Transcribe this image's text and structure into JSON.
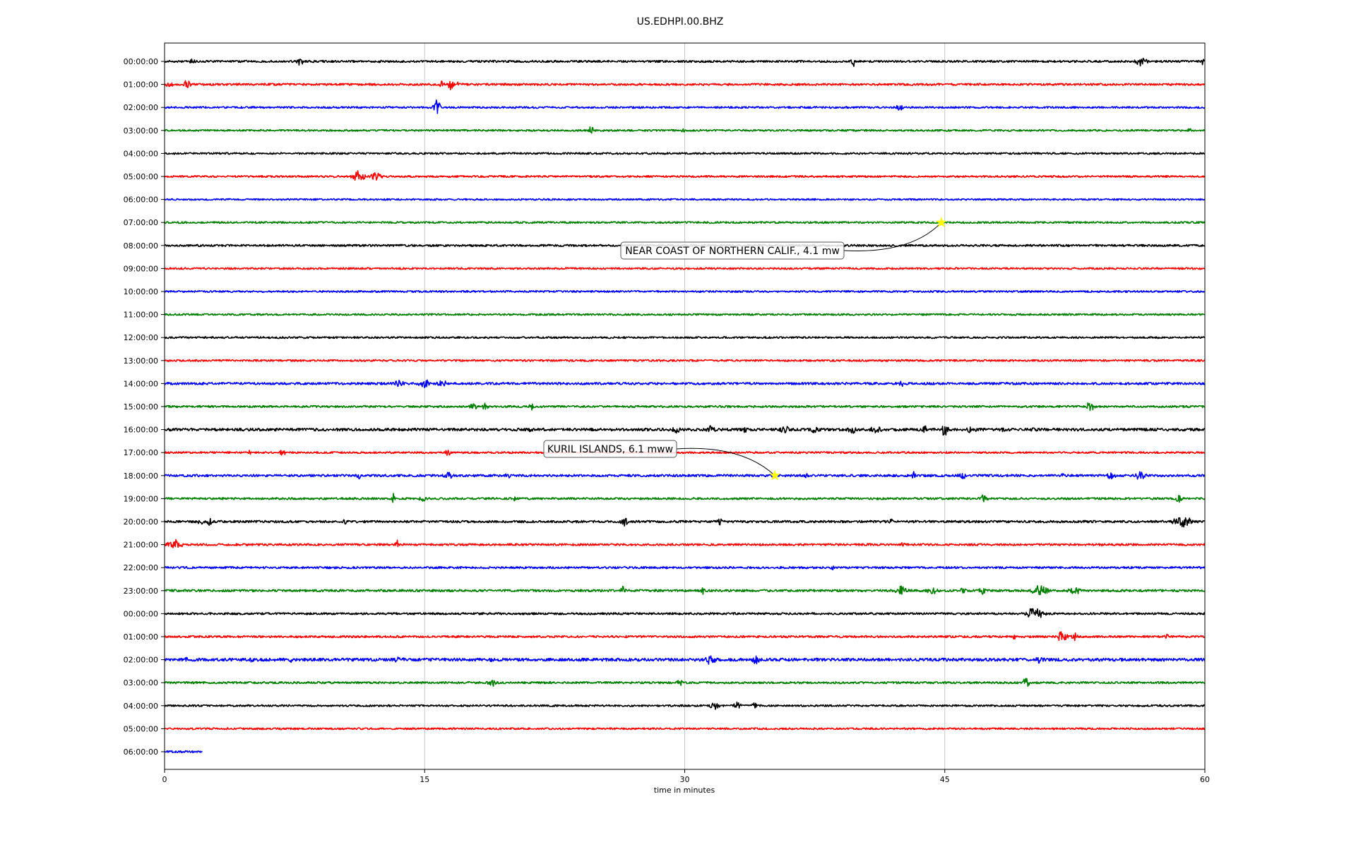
{
  "chart_data": {
    "type": "line",
    "title": "US.EDHPI.00.BHZ",
    "xlabel": "time in minutes",
    "ylabel": "",
    "xlim": [
      0,
      60
    ],
    "x_ticks": [
      0,
      15,
      30,
      45,
      60
    ],
    "x_tick_labels": [
      "0",
      "15",
      "30",
      "45",
      "60"
    ],
    "grid": "vertical",
    "line_colors": [
      "#000000",
      "#ff0000",
      "#0000ff",
      "#008000"
    ],
    "rows": [
      {
        "label": "00:00:00",
        "color": "#000000",
        "end_minute": 60,
        "noise": 0.9,
        "bursts": [
          [
            1.6,
            0.3,
            3
          ],
          [
            7.8,
            0.25,
            7
          ],
          [
            12.4,
            0.4,
            2
          ],
          [
            39.7,
            0.15,
            8
          ],
          [
            56.3,
            0.6,
            5
          ],
          [
            59.9,
            0.1,
            7
          ]
        ]
      },
      {
        "label": "01:00:00",
        "color": "#ff0000",
        "end_minute": 60,
        "noise": 0.9,
        "bursts": [
          [
            0.3,
            0.5,
            3
          ],
          [
            1.3,
            0.3,
            5
          ],
          [
            16.0,
            0.4,
            4
          ],
          [
            16.5,
            0.3,
            8
          ],
          [
            17.0,
            0.3,
            4
          ]
        ]
      },
      {
        "label": "02:00:00",
        "color": "#0000ff",
        "end_minute": 60,
        "noise": 0.8,
        "bursts": [
          [
            15.7,
            0.3,
            9
          ],
          [
            42.4,
            0.3,
            4
          ]
        ]
      },
      {
        "label": "03:00:00",
        "color": "#008000",
        "end_minute": 60,
        "noise": 0.8,
        "bursts": [
          [
            24.6,
            0.2,
            6
          ],
          [
            29.9,
            0.2,
            3
          ],
          [
            59.1,
            0.2,
            3
          ]
        ]
      },
      {
        "label": "04:00:00",
        "color": "#000000",
        "end_minute": 60,
        "noise": 0.8,
        "bursts": []
      },
      {
        "label": "05:00:00",
        "color": "#ff0000",
        "end_minute": 60,
        "noise": 0.8,
        "bursts": [
          [
            9.7,
            0.2,
            2
          ],
          [
            11.2,
            0.6,
            7
          ],
          [
            12.2,
            0.5,
            5
          ]
        ]
      },
      {
        "label": "06:00:00",
        "color": "#0000ff",
        "end_minute": 60,
        "noise": 0.7,
        "bursts": []
      },
      {
        "label": "07:00:00",
        "color": "#008000",
        "end_minute": 60,
        "noise": 0.8,
        "bursts": []
      },
      {
        "label": "08:00:00",
        "color": "#000000",
        "end_minute": 60,
        "noise": 0.9,
        "bursts": []
      },
      {
        "label": "09:00:00",
        "color": "#ff0000",
        "end_minute": 60,
        "noise": 0.8,
        "bursts": []
      },
      {
        "label": "10:00:00",
        "color": "#0000ff",
        "end_minute": 60,
        "noise": 0.8,
        "bursts": []
      },
      {
        "label": "11:00:00",
        "color": "#008000",
        "end_minute": 60,
        "noise": 0.8,
        "bursts": []
      },
      {
        "label": "12:00:00",
        "color": "#000000",
        "end_minute": 60,
        "noise": 0.8,
        "bursts": []
      },
      {
        "label": "13:00:00",
        "color": "#ff0000",
        "end_minute": 60,
        "noise": 0.8,
        "bursts": []
      },
      {
        "label": "14:00:00",
        "color": "#0000ff",
        "end_minute": 60,
        "noise": 1.0,
        "bursts": [
          [
            13.5,
            0.5,
            4
          ],
          [
            15.0,
            0.6,
            5
          ],
          [
            16.0,
            0.5,
            4
          ],
          [
            42.5,
            0.2,
            4
          ]
        ]
      },
      {
        "label": "15:00:00",
        "color": "#008000",
        "end_minute": 60,
        "noise": 0.9,
        "bursts": [
          [
            17.8,
            0.4,
            4
          ],
          [
            18.5,
            0.3,
            4
          ],
          [
            21.2,
            0.3,
            4
          ],
          [
            40.3,
            0.3,
            2
          ],
          [
            53.4,
            0.4,
            6
          ]
        ]
      },
      {
        "label": "16:00:00",
        "color": "#000000",
        "end_minute": 60,
        "noise": 1.2,
        "bursts": [
          [
            21.1,
            0.3,
            3
          ],
          [
            29.5,
            0.5,
            4
          ],
          [
            31.5,
            0.5,
            4
          ],
          [
            33.5,
            0.5,
            4
          ],
          [
            35.8,
            0.6,
            4
          ],
          [
            37.5,
            0.6,
            4
          ],
          [
            39.7,
            0.5,
            5
          ],
          [
            41.0,
            0.6,
            4
          ],
          [
            43.8,
            0.5,
            5
          ],
          [
            45.0,
            0.3,
            8
          ],
          [
            46.5,
            0.5,
            4
          ],
          [
            48.5,
            0.5,
            3
          ],
          [
            50.2,
            0.5,
            3
          ]
        ]
      },
      {
        "label": "17:00:00",
        "color": "#ff0000",
        "end_minute": 60,
        "noise": 0.8,
        "bursts": [
          [
            4.9,
            0.15,
            5
          ],
          [
            6.8,
            0.3,
            4
          ],
          [
            16.3,
            0.3,
            4
          ]
        ]
      },
      {
        "label": "18:00:00",
        "color": "#0000ff",
        "end_minute": 60,
        "noise": 1.0,
        "bursts": [
          [
            11.2,
            0.3,
            5
          ],
          [
            16.4,
            0.5,
            4
          ],
          [
            19.8,
            0.3,
            4
          ],
          [
            35.0,
            0.2,
            3
          ],
          [
            37.0,
            0.2,
            3
          ],
          [
            43.2,
            0.2,
            5
          ],
          [
            46.0,
            0.4,
            4
          ],
          [
            51.8,
            0.2,
            3
          ],
          [
            54.6,
            0.4,
            5
          ],
          [
            56.3,
            0.5,
            6
          ]
        ]
      },
      {
        "label": "19:00:00",
        "color": "#008000",
        "end_minute": 60,
        "noise": 0.9,
        "bursts": [
          [
            13.2,
            0.2,
            5
          ],
          [
            14.9,
            0.3,
            5
          ],
          [
            20.2,
            0.2,
            4
          ],
          [
            47.2,
            0.4,
            5
          ],
          [
            58.5,
            0.3,
            5
          ]
        ]
      },
      {
        "label": "20:00:00",
        "color": "#000000",
        "end_minute": 60,
        "noise": 1.0,
        "bursts": [
          [
            2.1,
            0.3,
            5
          ],
          [
            2.6,
            0.2,
            5
          ],
          [
            10.4,
            0.2,
            4
          ],
          [
            26.5,
            0.4,
            6
          ],
          [
            32.0,
            0.2,
            7
          ],
          [
            41.9,
            0.2,
            4
          ],
          [
            58.7,
            0.8,
            7
          ]
        ]
      },
      {
        "label": "21:00:00",
        "color": "#ff0000",
        "end_minute": 60,
        "noise": 0.9,
        "bursts": [
          [
            0.6,
            0.8,
            5
          ],
          [
            13.4,
            0.2,
            5
          ],
          [
            34.3,
            0.2,
            3
          ],
          [
            42.6,
            0.2,
            4
          ],
          [
            54.0,
            0.3,
            3
          ]
        ]
      },
      {
        "label": "22:00:00",
        "color": "#0000ff",
        "end_minute": 60,
        "noise": 0.9,
        "bursts": [
          [
            38.5,
            0.3,
            3
          ]
        ]
      },
      {
        "label": "23:00:00",
        "color": "#008000",
        "end_minute": 60,
        "noise": 1.0,
        "bursts": [
          [
            26.4,
            0.3,
            5
          ],
          [
            31.0,
            0.3,
            5
          ],
          [
            42.5,
            0.6,
            5
          ],
          [
            44.3,
            0.6,
            4
          ],
          [
            46.0,
            0.4,
            3
          ],
          [
            47.2,
            0.3,
            5
          ],
          [
            50.5,
            0.8,
            6
          ],
          [
            52.5,
            0.6,
            5
          ]
        ]
      },
      {
        "label": "00:00:00",
        "color": "#000000",
        "end_minute": 60,
        "noise": 0.9,
        "bursts": [
          [
            50.2,
            0.8,
            7
          ]
        ]
      },
      {
        "label": "01:00:00",
        "color": "#ff0000",
        "end_minute": 60,
        "noise": 0.9,
        "bursts": [
          [
            49.0,
            0.3,
            3
          ],
          [
            51.8,
            0.4,
            8
          ],
          [
            52.5,
            0.4,
            4
          ],
          [
            57.8,
            0.2,
            3
          ]
        ]
      },
      {
        "label": "02:00:00",
        "color": "#0000ff",
        "end_minute": 60,
        "noise": 1.3,
        "bursts": [
          [
            1.3,
            0.3,
            3
          ],
          [
            5.0,
            0.3,
            3
          ],
          [
            7.3,
            0.3,
            3
          ],
          [
            13.5,
            0.8,
            3
          ],
          [
            18.8,
            0.6,
            3
          ],
          [
            31.5,
            0.5,
            6
          ],
          [
            34.1,
            0.3,
            6
          ],
          [
            50.5,
            0.6,
            4
          ]
        ]
      },
      {
        "label": "03:00:00",
        "color": "#008000",
        "end_minute": 60,
        "noise": 0.9,
        "bursts": [
          [
            18.9,
            0.4,
            5
          ],
          [
            29.7,
            0.3,
            4
          ],
          [
            49.7,
            0.3,
            6
          ]
        ]
      },
      {
        "label": "04:00:00",
        "color": "#000000",
        "end_minute": 60,
        "noise": 0.8,
        "bursts": [
          [
            31.7,
            0.5,
            5
          ],
          [
            33.0,
            0.4,
            4
          ],
          [
            34.0,
            0.3,
            4
          ]
        ]
      },
      {
        "label": "05:00:00",
        "color": "#ff0000",
        "end_minute": 60,
        "noise": 0.8,
        "bursts": []
      },
      {
        "label": "06:00:00",
        "color": "#0000ff",
        "end_minute": 2.2,
        "noise": 0.9,
        "bursts": []
      }
    ],
    "events": [
      {
        "label": "NEAR COAST OF NORTHERN CALIF., 4.1 mw",
        "row": 7,
        "minute": 44.8,
        "marker": "star",
        "marker_color": "#ffff00"
      },
      {
        "label": "KURIL ISLANDS, 6.1 mww",
        "row": 18,
        "minute": 35.2,
        "marker": "star",
        "marker_color": "#ffff00"
      }
    ]
  }
}
